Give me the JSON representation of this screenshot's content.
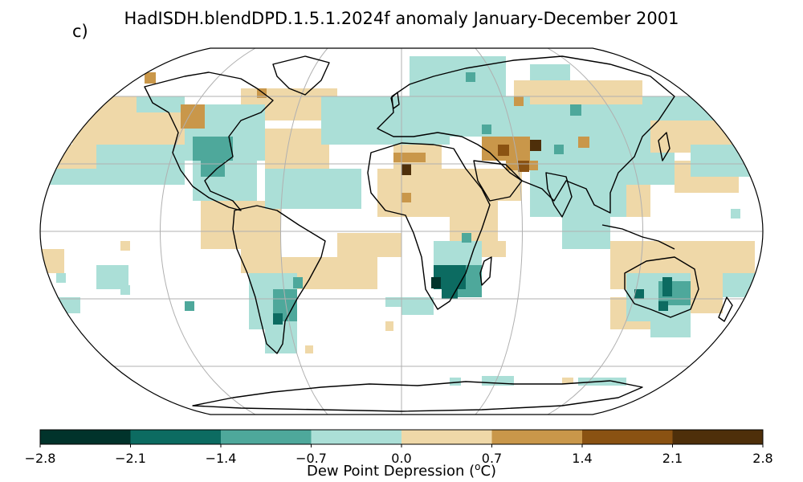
{
  "title": "HadISDH.blendDPD.1.5.1.2024f anomaly January-December 2001",
  "panel_label": "c)",
  "colorbar": {
    "label_prefix": "Dew Point Depression (",
    "label_sup": "o",
    "label_suffix": "C)",
    "ticks": [
      "−2.8",
      "−2.1",
      "−1.4",
      "−0.7",
      "0.0",
      "0.7",
      "1.4",
      "2.1",
      "2.8"
    ],
    "bins": [
      {
        "min": -2.8,
        "max": -2.1,
        "color": "#01332b"
      },
      {
        "min": -2.1,
        "max": -1.4,
        "color": "#0c6b61"
      },
      {
        "min": -1.4,
        "max": -0.7,
        "color": "#4ea89b"
      },
      {
        "min": -0.7,
        "max": 0.0,
        "color": "#abdfd7"
      },
      {
        "min": 0.0,
        "max": 0.7,
        "color": "#efd8a8"
      },
      {
        "min": 0.7,
        "max": 1.4,
        "color": "#c9974a"
      },
      {
        "min": 1.4,
        "max": 2.1,
        "color": "#8a5212"
      },
      {
        "min": 2.1,
        "max": 2.8,
        "color": "#4e2f0a"
      }
    ]
  }
}
